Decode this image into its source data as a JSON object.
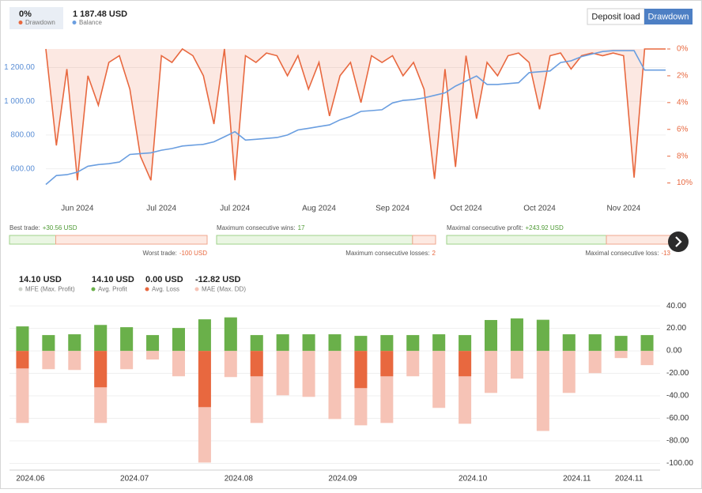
{
  "controls": {
    "buttons": [
      "Deposit load",
      "Drawdown"
    ],
    "active": 1
  },
  "stats": [
    {
      "left": {
        "label": "Best trade:",
        "value": 30.56,
        "value_label": "+30.56 USD"
      },
      "right": {
        "label": "Worst trade:",
        "value": -100,
        "value_label": "-100 USD"
      }
    },
    {
      "left": {
        "label": "Maximum consecutive wins:",
        "value": 17
      },
      "right": {
        "label": "Maximum consecutive losses:",
        "value": 2
      }
    },
    {
      "left": {
        "label": "Maximal consecutive profit:",
        "value": 243.92,
        "value_label": "+243.92 USD"
      },
      "right": {
        "label": "Maximal consecutive loss:",
        "value_label": "-13"
      }
    }
  ],
  "chart_data": [
    {
      "type": "line",
      "categories": [
        null,
        null,
        null,
        "Jun 2024",
        null,
        null,
        null,
        null,
        null,
        null,
        null,
        "Jul 2024",
        null,
        null,
        null,
        null,
        null,
        null,
        "Jul 2024",
        null,
        null,
        null,
        null,
        null,
        null,
        null,
        "Aug 2024",
        null,
        null,
        null,
        null,
        null,
        null,
        "Sep 2024",
        null,
        null,
        null,
        null,
        null,
        null,
        "Oct 2024",
        null,
        null,
        null,
        null,
        null,
        null,
        "Oct 2024",
        null,
        null,
        null,
        null,
        null,
        null,
        null,
        "Nov 2024",
        null,
        null,
        null,
        null
      ],
      "series": [
        {
          "name": "Drawdown",
          "color": "#e8683f",
          "axis": "y2",
          "values": [
            0,
            7.2,
            1.5,
            9.8,
            2,
            4.2,
            1,
            0.5,
            3,
            8,
            9.8,
            0.5,
            1,
            0,
            0.5,
            2,
            5.6,
            0,
            9.8,
            0.5,
            1,
            0.3,
            0.5,
            2,
            0.5,
            3,
            1,
            5,
            2,
            1,
            4,
            0.5,
            1,
            0.5,
            2,
            1,
            3,
            9.7,
            1.5,
            8.8,
            0.5,
            5.2,
            1,
            2,
            0.5,
            0.3,
            1,
            4.5,
            0.5,
            0.3,
            1.5,
            0.5,
            0.3,
            0.5,
            0.3,
            0.5,
            9.6,
            0,
            0,
            0
          ]
        },
        {
          "name": "Balance",
          "color": "#6a9ee0",
          "axis": "y",
          "values": [
            507,
            560,
            565,
            580,
            615,
            625,
            630,
            640,
            685,
            690,
            695,
            710,
            720,
            735,
            740,
            745,
            760,
            790,
            820,
            770,
            775,
            780,
            785,
            800,
            830,
            840,
            850,
            860,
            890,
            910,
            940,
            945,
            950,
            990,
            1005,
            1010,
            1020,
            1035,
            1050,
            1090,
            1120,
            1150,
            1100,
            1100,
            1105,
            1110,
            1170,
            1175,
            1180,
            1230,
            1240,
            1265,
            1280,
            1295,
            1300,
            1300,
            1300,
            1185,
            1185,
            1185
          ]
        }
      ],
      "legend_values": [
        "0%",
        "1 187.48 USD"
      ],
      "ylim": [
        500,
        1310
      ],
      "yticks": [
        {
          "value": 600,
          "label": "600.00"
        },
        {
          "value": 800,
          "label": "800.00"
        },
        {
          "value": 1000,
          "label": "1 000.00"
        },
        {
          "value": 1200,
          "label": "1 200.00"
        }
      ],
      "y2lim": [
        0,
        10.2
      ],
      "y2_inverted": true,
      "y2ticks": [
        {
          "value": 0,
          "label": "0%"
        },
        {
          "value": 2,
          "label": "2%"
        },
        {
          "value": 4,
          "label": "4%"
        },
        {
          "value": 6,
          "label": "6%"
        },
        {
          "value": 8,
          "label": "8%"
        },
        {
          "value": 10,
          "label": "10%"
        }
      ]
    },
    {
      "type": "bar",
      "categories": [
        "2024.06",
        null,
        null,
        null,
        "2024.07",
        null,
        null,
        null,
        "2024.08",
        null,
        null,
        null,
        "2024.09",
        null,
        null,
        null,
        null,
        "2024.10",
        null,
        null,
        null,
        "2024.11",
        null,
        "2024.11",
        null
      ],
      "series": [
        {
          "name": "MFE (Max. Profit)",
          "color": "#cfe3c2",
          "values": [
            21.7,
            14,
            14.7,
            23,
            21,
            14,
            20.3,
            28,
            30.2,
            14,
            14.7,
            14.7,
            14.7,
            13.3,
            14,
            14,
            14.7,
            14,
            27.4,
            28.8,
            28.1,
            14.7,
            14.7,
            13.3,
            14
          ]
        },
        {
          "name": "Avg. Profit",
          "color": "#6ab04a",
          "values": [
            21.7,
            14,
            14.7,
            23,
            21,
            14,
            20.3,
            28,
            29.5,
            14,
            14.7,
            14.7,
            14.7,
            13.3,
            14,
            14,
            14.7,
            14,
            27.4,
            28.8,
            27.4,
            14.7,
            14.7,
            13.3,
            14
          ]
        },
        {
          "name": "Avg. Loss",
          "color": "#e8683f",
          "values": [
            -15.6,
            0,
            0,
            -32.4,
            0,
            0,
            0,
            -50,
            0,
            -22.6,
            0,
            0,
            0,
            -33.1,
            -22.6,
            0,
            0,
            -22.6,
            0,
            0,
            0,
            0,
            0,
            0,
            0
          ]
        },
        {
          "name": "MAE (Max. DD)",
          "color": "#f6c3b6",
          "values": [
            -64.1,
            -16.3,
            -17,
            -64.1,
            -16.3,
            -7.7,
            -22.6,
            -99.3,
            -23.3,
            -64.1,
            -39.5,
            -40.9,
            -60.6,
            -66.2,
            -64.1,
            -22.6,
            -50.7,
            -64.8,
            -37.4,
            -24.7,
            -71.2,
            -37.4,
            -19.8,
            -6.4,
            -12.7
          ]
        }
      ],
      "legend_values": [
        "14.10 USD",
        "14.10 USD",
        "0.00 USD",
        "-12.82 USD"
      ],
      "ylim": [
        -106,
        45
      ],
      "yticks": [
        {
          "value": 40,
          "label": "40.00"
        },
        {
          "value": 20,
          "label": "20.00"
        },
        {
          "value": 0,
          "label": "0.00"
        },
        {
          "value": -20,
          "label": "-20.00"
        },
        {
          "value": -40,
          "label": "-40.00"
        },
        {
          "value": -60,
          "label": "-60.00"
        },
        {
          "value": -80,
          "label": "-80.00"
        },
        {
          "value": -100,
          "label": "-100.00"
        }
      ]
    }
  ]
}
